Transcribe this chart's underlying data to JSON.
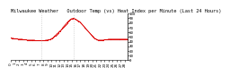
{
  "title": "Milwaukee Weather   Outdoor Temp (vs) Heat Index per Minute (Last 24 Hours)",
  "background_color": "#ffffff",
  "plot_bg_color": "#ffffff",
  "line_color": "#dd0000",
  "line_style": "-",
  "line_width": 0.7,
  "marker": "o",
  "marker_size": 0.8,
  "vline_color": "#bbbbbb",
  "vline_style": ":",
  "vline_positions": [
    38,
    77
  ],
  "ylim": [
    0,
    100
  ],
  "yticks": [
    0,
    10,
    20,
    30,
    40,
    50,
    60,
    70,
    80,
    90,
    100
  ],
  "ytick_labels": [
    "0",
    "10",
    "20",
    "30",
    "40",
    "50",
    "60",
    "70",
    "80",
    "90",
    "100"
  ],
  "title_fontsize": 3.8,
  "tick_fontsize": 3.0,
  "x_values": [
    0,
    1,
    2,
    3,
    4,
    5,
    6,
    7,
    8,
    9,
    10,
    11,
    12,
    13,
    14,
    15,
    16,
    17,
    18,
    19,
    20,
    21,
    22,
    23,
    24,
    25,
    26,
    27,
    28,
    29,
    30,
    31,
    32,
    33,
    34,
    35,
    36,
    37,
    38,
    39,
    40,
    41,
    42,
    43,
    44,
    45,
    46,
    47,
    48,
    49,
    50,
    51,
    52,
    53,
    54,
    55,
    56,
    57,
    58,
    59,
    60,
    61,
    62,
    63,
    64,
    65,
    66,
    67,
    68,
    69,
    70,
    71,
    72,
    73,
    74,
    75,
    76,
    77,
    78,
    79,
    80,
    81,
    82,
    83,
    84,
    85,
    86,
    87,
    88,
    89,
    90,
    91,
    92,
    93,
    94,
    95,
    96,
    97,
    98,
    99,
    100,
    101,
    102,
    103,
    104,
    105,
    106,
    107,
    108,
    109,
    110,
    111,
    112,
    113,
    114,
    115,
    116,
    117,
    118,
    119,
    120,
    121,
    122,
    123,
    124,
    125,
    126,
    127,
    128,
    129,
    130,
    131,
    132,
    133,
    134,
    135,
    136,
    137,
    138,
    139,
    140,
    141,
    142,
    143
  ],
  "y_values": [
    48,
    47,
    47,
    47,
    46,
    46,
    46,
    46,
    46,
    45,
    45,
    45,
    45,
    45,
    45,
    44,
    44,
    44,
    44,
    44,
    43,
    43,
    43,
    43,
    43,
    43,
    43,
    43,
    43,
    43,
    42,
    42,
    42,
    42,
    42,
    42,
    42,
    42,
    42,
    42,
    42,
    42,
    42,
    43,
    43,
    43,
    44,
    44,
    44,
    45,
    46,
    47,
    48,
    50,
    52,
    53,
    55,
    57,
    58,
    60,
    62,
    63,
    65,
    67,
    70,
    72,
    74,
    76,
    78,
    80,
    82,
    84,
    85,
    87,
    88,
    89,
    89,
    90,
    89,
    88,
    87,
    86,
    85,
    84,
    83,
    82,
    80,
    78,
    76,
    74,
    72,
    70,
    68,
    66,
    64,
    62,
    60,
    58,
    56,
    54,
    52,
    50,
    48,
    47,
    46,
    45,
    44,
    43,
    43,
    43,
    43,
    43,
    43,
    43,
    43,
    44,
    44,
    44,
    44,
    44,
    45,
    45,
    45,
    45,
    45,
    45,
    45,
    45,
    45,
    45,
    45,
    45,
    45,
    45,
    45,
    45,
    45,
    45,
    45,
    45,
    45,
    45,
    45,
    45
  ],
  "xtick_count": 25,
  "xlim": [
    0,
    143
  ]
}
